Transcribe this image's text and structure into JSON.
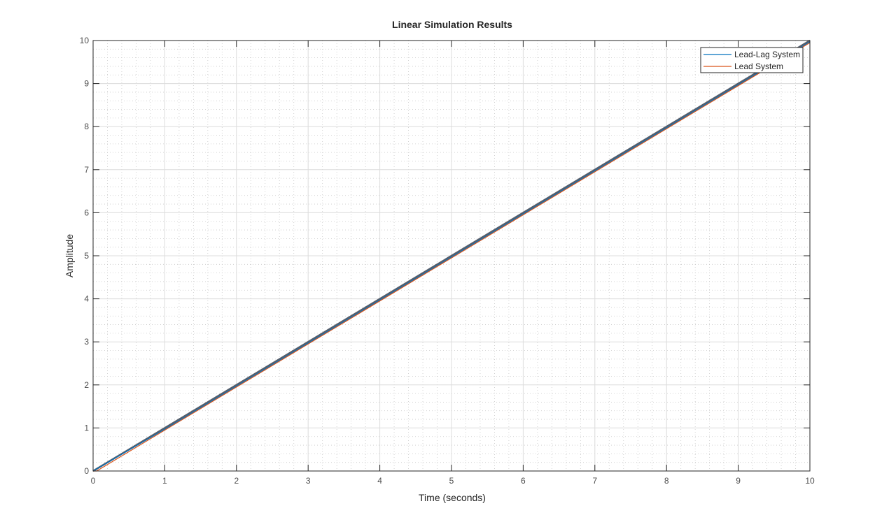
{
  "chart_data": {
    "type": "line",
    "title": "Linear Simulation Results",
    "xlabel": "Time (seconds)",
    "ylabel": "Amplitude",
    "xlim": [
      0,
      10
    ],
    "ylim": [
      0,
      10
    ],
    "x_ticks": [
      0,
      1,
      2,
      3,
      4,
      5,
      6,
      7,
      8,
      9,
      10
    ],
    "y_ticks": [
      0,
      1,
      2,
      3,
      4,
      5,
      6,
      7,
      8,
      9,
      10
    ],
    "x_tick_labels": [
      "0",
      "1",
      "2",
      "3",
      "4",
      "5",
      "6",
      "7",
      "8",
      "9",
      "10"
    ],
    "y_tick_labels": [
      "0",
      "1",
      "2",
      "3",
      "4",
      "5",
      "6",
      "7",
      "8",
      "9",
      "10"
    ],
    "grid": "major and minor",
    "legend_position": "top-right",
    "input_reference": {
      "color": "#555e6c",
      "x": [
        0,
        10
      ],
      "y": [
        0,
        10
      ]
    },
    "series": [
      {
        "name": "Lead-Lag System",
        "color": "#0072bd",
        "x": [
          0,
          1,
          2,
          3,
          4,
          5,
          6,
          7,
          8,
          9,
          10
        ],
        "y": [
          0,
          0.97,
          1.97,
          2.97,
          3.97,
          4.97,
          5.97,
          6.97,
          7.97,
          8.97,
          9.97
        ]
      },
      {
        "name": "Lead System",
        "color": "#d95319",
        "x": [
          0,
          0.05,
          1,
          2,
          3,
          4,
          5,
          6,
          7,
          8,
          9,
          10
        ],
        "y": [
          0,
          0,
          0.95,
          1.95,
          2.95,
          3.95,
          4.95,
          5.95,
          6.95,
          7.95,
          8.95,
          9.95
        ]
      }
    ]
  }
}
